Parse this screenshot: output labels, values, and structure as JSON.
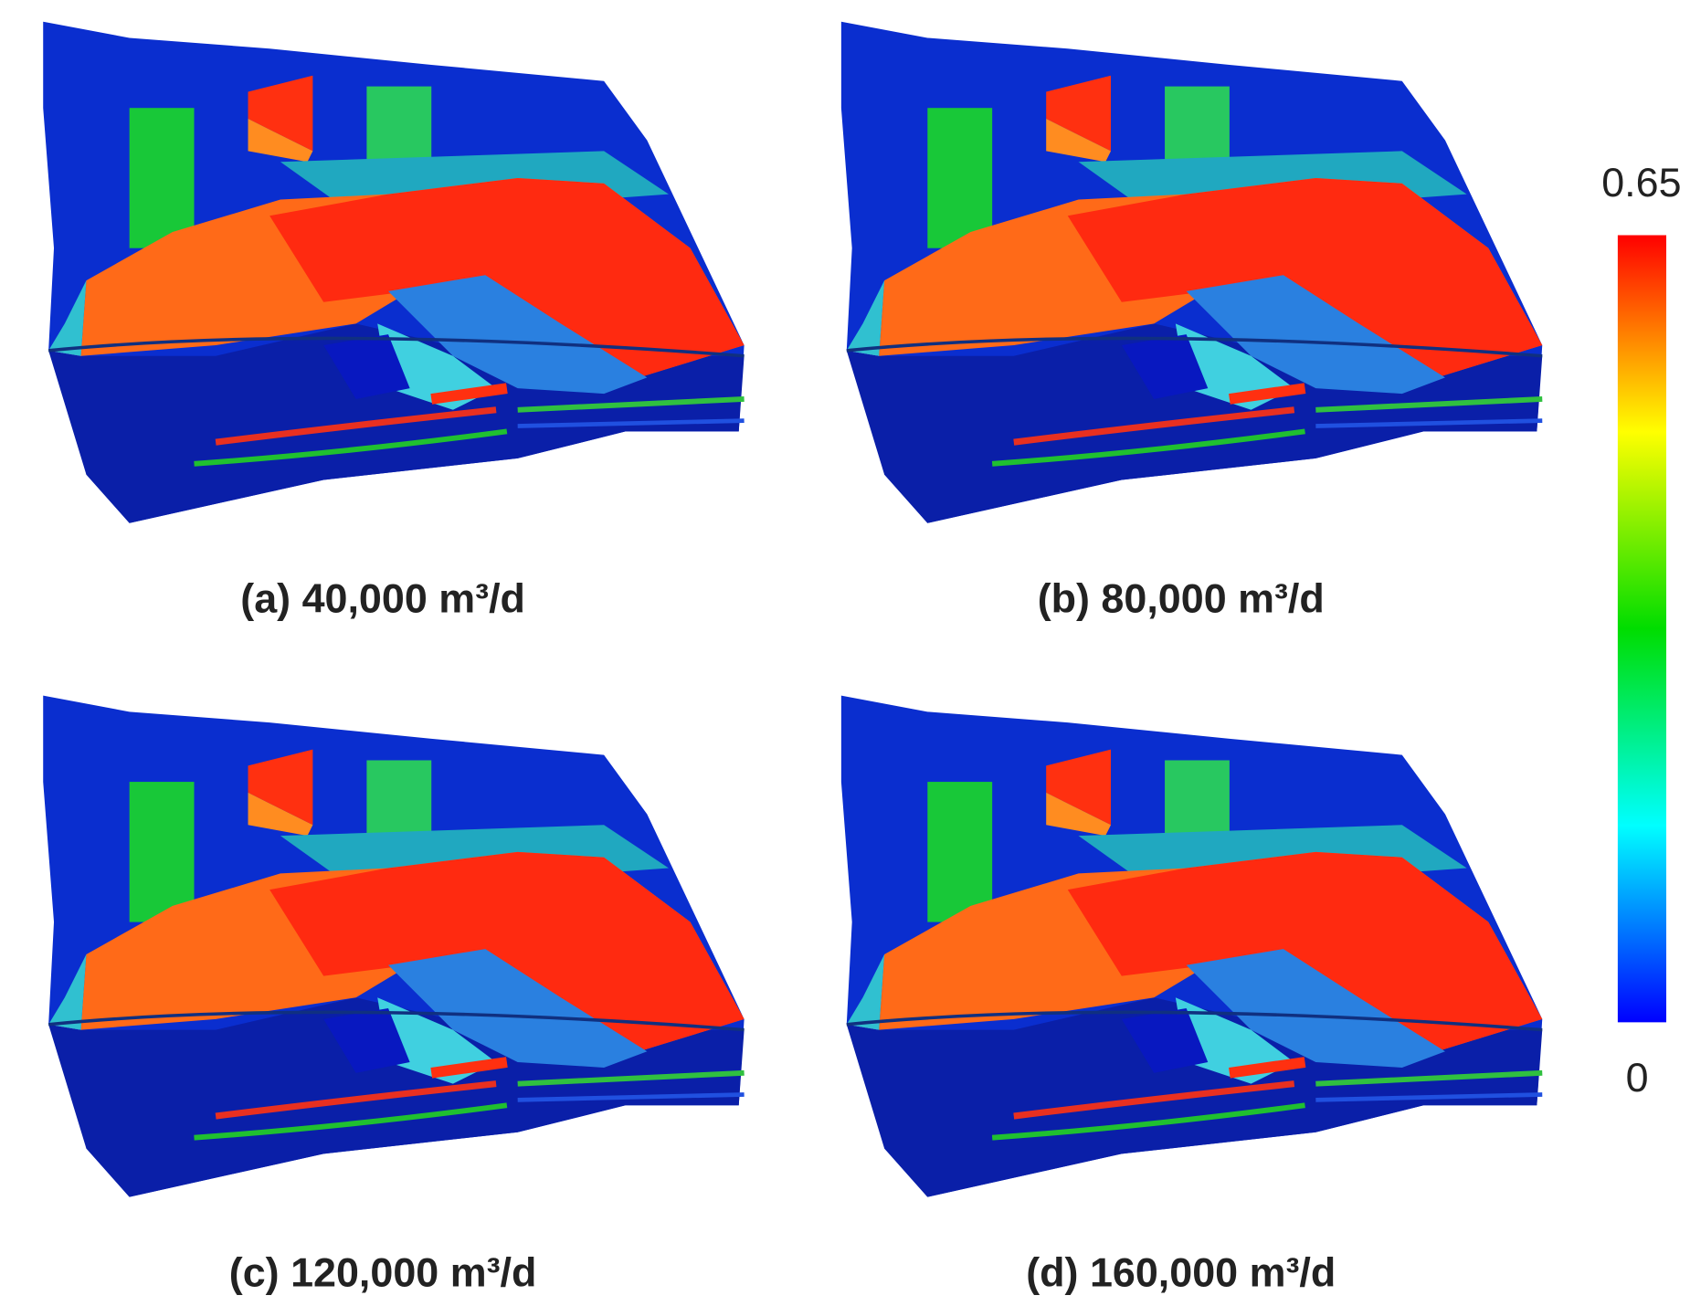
{
  "panels": [
    {
      "caption": "(a) 40,000 m³/d"
    },
    {
      "caption": "(b) 80,000 m³/d"
    },
    {
      "caption": "(c) 120,000 m³/d"
    },
    {
      "caption": "(d) 160,000 m³/d"
    }
  ],
  "colorbar": {
    "max": 0.65,
    "min": 0,
    "colors": [
      "#0000ff",
      "#00ffff",
      "#00dd00",
      "#ffff00",
      "#ff0000"
    ]
  }
}
